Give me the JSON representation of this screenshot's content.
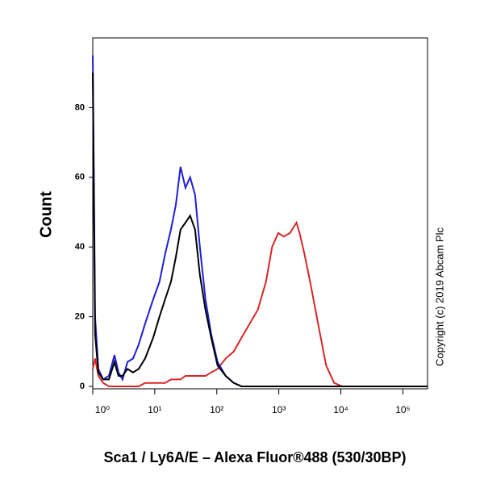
{
  "chart_data": {
    "type": "line",
    "ylabel": "Count",
    "xlabel": "Sca1 / Ly6A/E – Alexa Fluor®488 (530/30BP)",
    "annotation": "Copyright (c) 2019 Abcam Plc",
    "log_x": true,
    "x": [
      1,
      1.09,
      1.23,
      1.47,
      1.82,
      2.24,
      2.6,
      3.02,
      3.62,
      4.46,
      5.5,
      6.98,
      9.41,
      11.9,
      14.7,
      18.2,
      21.8,
      26,
      31.2,
      37.2,
      44.6,
      53.3,
      65.6,
      81.2,
      103,
      139,
      187,
      251,
      459,
      620,
      780,
      977,
      1200,
      1510,
      1930,
      2160,
      2590,
      3200,
      4300,
      5800,
      7800,
      10500,
      16600,
      248000
    ],
    "series": [
      {
        "color": "#d62728",
        "values": [
          5,
          8,
          3,
          1,
          0,
          0,
          0,
          0,
          0,
          0,
          0,
          1,
          1,
          1,
          1,
          2,
          2,
          2,
          3,
          3,
          3,
          3,
          3,
          4,
          5,
          8,
          10,
          14,
          22,
          30,
          40,
          44,
          43,
          44,
          47,
          44,
          38,
          30,
          18,
          6,
          1,
          0,
          0,
          0
        ]
      },
      {
        "color": "#1f1fd6",
        "values": [
          95,
          20,
          5,
          2,
          3,
          9,
          4,
          2,
          7,
          8,
          12,
          18,
          25,
          30,
          38,
          45,
          52,
          63,
          57,
          60,
          55,
          40,
          25,
          15,
          7,
          3,
          1,
          0,
          0,
          0,
          0,
          0,
          0,
          0,
          0,
          0,
          0,
          0,
          0,
          0,
          0,
          0,
          0,
          0
        ]
      },
      {
        "color": "#000000",
        "values": [
          90,
          15,
          4,
          2,
          2,
          7,
          3,
          3,
          5,
          4,
          5,
          8,
          14,
          20,
          25,
          30,
          37,
          45,
          47,
          49,
          45,
          32,
          22,
          14,
          6,
          3,
          1,
          0,
          0,
          0,
          0,
          0,
          0,
          0,
          0,
          0,
          0,
          0,
          0,
          0,
          0,
          0,
          0,
          0
        ]
      }
    ],
    "xlim": [
      1,
      250000
    ],
    "ylim": [
      0,
      100
    ],
    "yticks": [
      0,
      20,
      40,
      60,
      80
    ],
    "xticks": [
      {
        "value": 1,
        "label": "10⁰"
      },
      {
        "value": 10,
        "label": "10¹"
      },
      {
        "value": 100,
        "label": "10²"
      },
      {
        "value": 1000,
        "label": "10³"
      },
      {
        "value": 10000,
        "label": "10⁴"
      },
      {
        "value": 100000,
        "label": "10⁵"
      }
    ]
  }
}
